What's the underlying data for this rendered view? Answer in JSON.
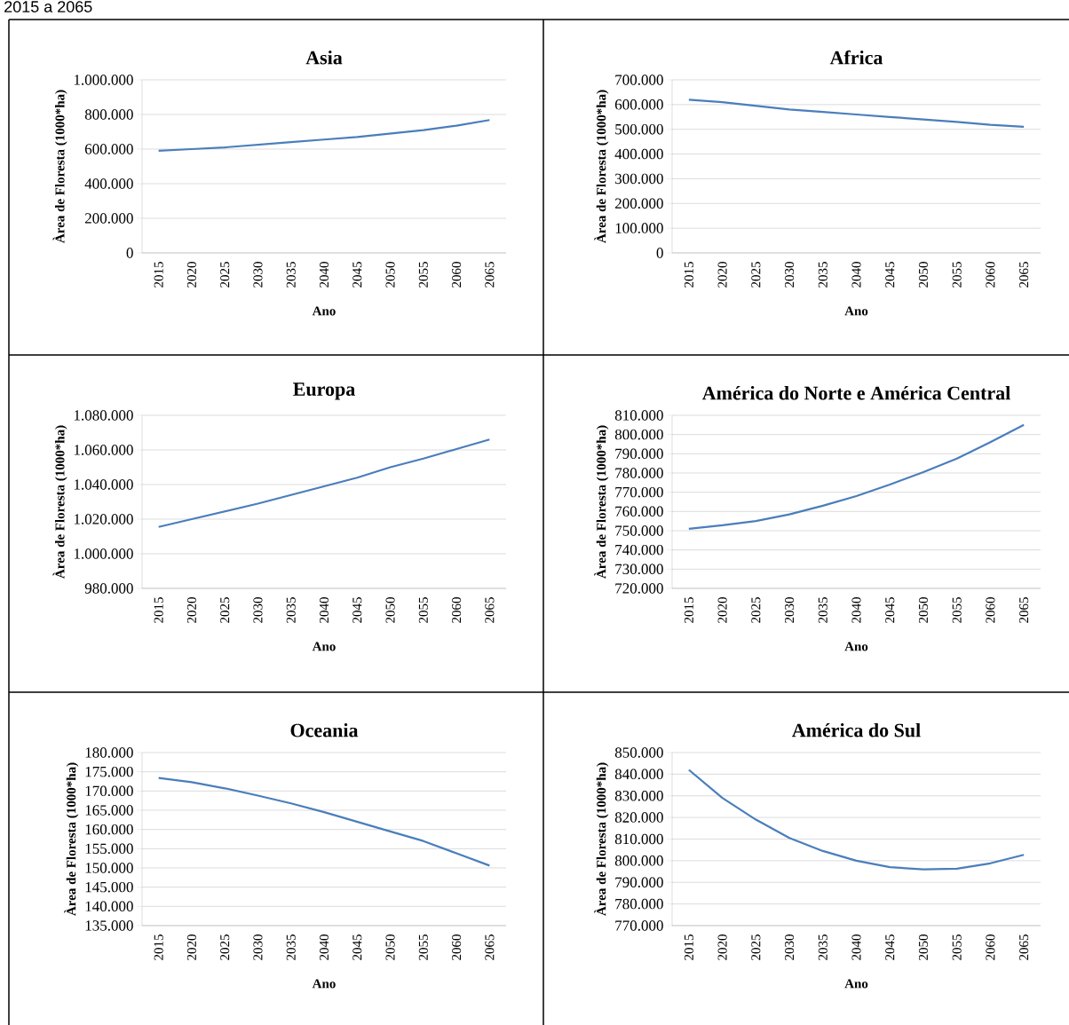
{
  "chart_data": [
    {
      "type": "line",
      "title": "Asia",
      "xlabel": "Ano",
      "ylabel": "Àrea de Floresta (1000*ha)",
      "annotations": [
        "2015 a 2065"
      ],
      "categories": [
        "2015",
        "2020",
        "2025",
        "2030",
        "2035",
        "2040",
        "2045",
        "2050",
        "2055",
        "2060",
        "2065"
      ],
      "series": [
        {
          "color": "#4a7ebb",
          "values": [
            590000,
            600000,
            610000,
            625000,
            640000,
            655000,
            670000,
            690000,
            710000,
            735000,
            768000
          ]
        }
      ],
      "ylim": [
        0,
        1000000
      ],
      "yticks": [
        {
          "value": 0,
          "label": "0"
        },
        {
          "value": 200000,
          "label": "200.000"
        },
        {
          "value": 400000,
          "label": "400.000"
        },
        {
          "value": 600000,
          "label": "600.000"
        },
        {
          "value": 800000,
          "label": "800.000"
        },
        {
          "value": 1000000,
          "label": "1.000.000"
        }
      ],
      "grid": "y"
    },
    {
      "type": "line",
      "title": "Africa",
      "xlabel": "Ano",
      "ylabel": "Àrea de Floresta (1000*ha)",
      "categories": [
        "2015",
        "2020",
        "2025",
        "2030",
        "2035",
        "2040",
        "2045",
        "2050",
        "2055",
        "2060",
        "2065"
      ],
      "series": [
        {
          "color": "#4a7ebb",
          "values": [
            620000,
            610000,
            595000,
            580000,
            570000,
            560000,
            550000,
            540000,
            530000,
            518000,
            510000
          ]
        }
      ],
      "ylim": [
        0,
        700000
      ],
      "yticks": [
        {
          "value": 0,
          "label": "0"
        },
        {
          "value": 100000,
          "label": "100.000"
        },
        {
          "value": 200000,
          "label": "200.000"
        },
        {
          "value": 300000,
          "label": "300.000"
        },
        {
          "value": 400000,
          "label": "400.000"
        },
        {
          "value": 500000,
          "label": "500.000"
        },
        {
          "value": 600000,
          "label": "600.000"
        },
        {
          "value": 700000,
          "label": "700.000"
        }
      ],
      "grid": "y"
    },
    {
      "type": "line",
      "title": "Europa",
      "xlabel": "Ano",
      "ylabel": "Àrea de Floresta (1000*ha)",
      "categories": [
        "2015",
        "2020",
        "2025",
        "2030",
        "2035",
        "2040",
        "2045",
        "2050",
        "2055",
        "2060",
        "2065"
      ],
      "series": [
        {
          "color": "#4a7ebb",
          "values": [
            1015500,
            1020000,
            1024500,
            1029000,
            1034000,
            1039000,
            1044000,
            1050000,
            1055000,
            1060500,
            1066000
          ]
        }
      ],
      "ylim": [
        980000,
        1080000
      ],
      "yticks": [
        {
          "value": 980000,
          "label": "980.000"
        },
        {
          "value": 1000000,
          "label": "1.000.000"
        },
        {
          "value": 1020000,
          "label": "1.020.000"
        },
        {
          "value": 1040000,
          "label": "1.040.000"
        },
        {
          "value": 1060000,
          "label": "1.060.000"
        },
        {
          "value": 1080000,
          "label": "1.080.000"
        }
      ],
      "grid": "y"
    },
    {
      "type": "line",
      "title": "América do Norte e América Central",
      "xlabel": "Ano",
      "ylabel": "Àrea de Floresta (1000*ha)",
      "categories": [
        "2015",
        "2020",
        "2025",
        "2030",
        "2035",
        "2040",
        "2045",
        "2050",
        "2055",
        "2060",
        "2065"
      ],
      "series": [
        {
          "color": "#4a7ebb",
          "values": [
            751000,
            752800,
            755000,
            758500,
            763000,
            768000,
            774000,
            780500,
            787500,
            796000,
            805000
          ]
        }
      ],
      "ylim": [
        720000,
        810000
      ],
      "yticks": [
        {
          "value": 720000,
          "label": "720.000"
        },
        {
          "value": 730000,
          "label": "730.000"
        },
        {
          "value": 740000,
          "label": "740.000"
        },
        {
          "value": 750000,
          "label": "750.000"
        },
        {
          "value": 760000,
          "label": "760.000"
        },
        {
          "value": 770000,
          "label": "770.000"
        },
        {
          "value": 780000,
          "label": "780.000"
        },
        {
          "value": 790000,
          "label": "790.000"
        },
        {
          "value": 800000,
          "label": "800.000"
        },
        {
          "value": 810000,
          "label": "810.000"
        }
      ],
      "grid": "y"
    },
    {
      "type": "line",
      "title": "Oceania",
      "xlabel": "Ano",
      "ylabel": "Àrea de Floresta (1000*ha)",
      "categories": [
        "2015",
        "2020",
        "2025",
        "2030",
        "2035",
        "2040",
        "2045",
        "2050",
        "2055",
        "2060",
        "2065"
      ],
      "series": [
        {
          "color": "#4a7ebb",
          "values": [
            173400,
            172300,
            170700,
            168800,
            166800,
            164500,
            162000,
            159500,
            157000,
            153800,
            150600
          ]
        }
      ],
      "ylim": [
        135000,
        180000
      ],
      "yticks": [
        {
          "value": 135000,
          "label": "135.000"
        },
        {
          "value": 140000,
          "label": "140.000"
        },
        {
          "value": 145000,
          "label": "145.000"
        },
        {
          "value": 150000,
          "label": "150.000"
        },
        {
          "value": 155000,
          "label": "155.000"
        },
        {
          "value": 160000,
          "label": "160.000"
        },
        {
          "value": 165000,
          "label": "165.000"
        },
        {
          "value": 170000,
          "label": "170.000"
        },
        {
          "value": 175000,
          "label": "175.000"
        },
        {
          "value": 180000,
          "label": "180.000"
        }
      ],
      "grid": "y"
    },
    {
      "type": "line",
      "title": "América do Sul",
      "xlabel": "Ano",
      "ylabel": "Àrea de Floresta (1000*ha)",
      "categories": [
        "2015",
        "2020",
        "2025",
        "2030",
        "2035",
        "2040",
        "2045",
        "2050",
        "2055",
        "2060",
        "2065"
      ],
      "series": [
        {
          "color": "#4a7ebb",
          "values": [
            842000,
            829000,
            819000,
            810500,
            804500,
            800000,
            797000,
            796000,
            796300,
            798800,
            802700
          ]
        }
      ],
      "ylim": [
        770000,
        850000
      ],
      "yticks": [
        {
          "value": 770000,
          "label": "770.000"
        },
        {
          "value": 780000,
          "label": "780.000"
        },
        {
          "value": 790000,
          "label": "790.000"
        },
        {
          "value": 800000,
          "label": "800.000"
        },
        {
          "value": 810000,
          "label": "810.000"
        },
        {
          "value": 820000,
          "label": "820.000"
        },
        {
          "value": 830000,
          "label": "830.000"
        },
        {
          "value": 840000,
          "label": "840.000"
        },
        {
          "value": 850000,
          "label": "850.000"
        }
      ],
      "grid": "y"
    }
  ]
}
